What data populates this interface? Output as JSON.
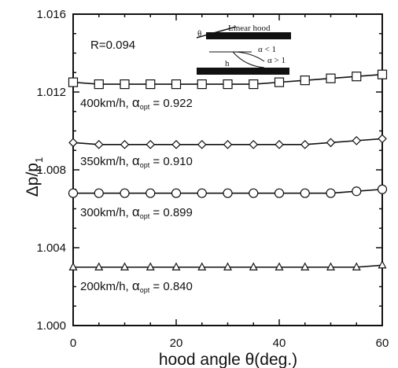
{
  "chart_data": {
    "type": "line",
    "xlabel": "hood angle  θ(deg.)",
    "ylabel": "Δp/p",
    "ylabel_sub": "1",
    "xlim": [
      0,
      60
    ],
    "ylim": [
      1.0,
      1.016
    ],
    "x_ticks": [
      "0",
      "20",
      "40",
      "60"
    ],
    "y_ticks": [
      "1.000",
      "1.004",
      "1.008",
      "1.012",
      "1.016"
    ],
    "x": [
      0,
      5,
      10,
      15,
      20,
      25,
      30,
      35,
      40,
      45,
      50,
      55,
      60
    ],
    "series": [
      {
        "name": "400km/h",
        "alpha_opt": "0.922",
        "marker": "square",
        "values": [
          1.0125,
          1.0124,
          1.0124,
          1.0124,
          1.0124,
          1.0124,
          1.0124,
          1.0124,
          1.0125,
          1.0126,
          1.0127,
          1.0128,
          1.0129
        ]
      },
      {
        "name": "350km/h",
        "alpha_opt": "0.910",
        "marker": "diamond",
        "values": [
          1.0094,
          1.0093,
          1.0093,
          1.0093,
          1.0093,
          1.0093,
          1.0093,
          1.0093,
          1.0093,
          1.0093,
          1.0094,
          1.0095,
          1.0096
        ]
      },
      {
        "name": "300km/h",
        "alpha_opt": "0.899",
        "marker": "circle",
        "values": [
          1.0068,
          1.0068,
          1.0068,
          1.0068,
          1.0068,
          1.0068,
          1.0068,
          1.0068,
          1.0068,
          1.0068,
          1.0068,
          1.0069,
          1.007
        ]
      },
      {
        "name": "200km/h",
        "alpha_opt": "0.840",
        "marker": "triangle",
        "values": [
          1.003,
          1.003,
          1.003,
          1.003,
          1.003,
          1.003,
          1.003,
          1.003,
          1.003,
          1.003,
          1.003,
          1.003,
          1.0031
        ]
      }
    ],
    "annotations": {
      "r_value": "R=0.094",
      "alpha_symbol": "α",
      "alpha_sub": "opt",
      "inset_theta": "θ",
      "inset_title": "Linear hood",
      "inset_alpha_lt": "α < 1",
      "inset_alpha_gt": "α > 1",
      "inset_h": "h"
    },
    "grid": false,
    "legend": "none"
  }
}
